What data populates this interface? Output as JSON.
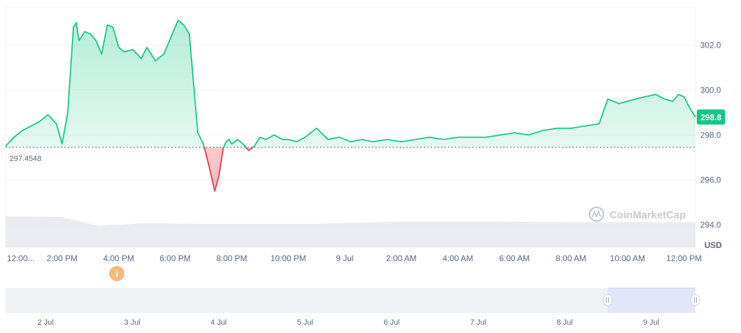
{
  "chart_data": {
    "type": "line",
    "title": "",
    "xlabel": "",
    "ylabel": "USD",
    "ylim": [
      293.0,
      303.7
    ],
    "y_ticks": [
      302.0,
      300.0,
      298.0,
      296.0,
      294.0
    ],
    "y_tick_labels": [
      "302.0",
      "300.0",
      "298.0",
      "296.0",
      "294.0"
    ],
    "x_ticks": [
      {
        "t": 0,
        "label": "12:00..."
      },
      {
        "t": 2,
        "label": "2:00 PM"
      },
      {
        "t": 4,
        "label": "4:00 PM"
      },
      {
        "t": 6,
        "label": "6:00 PM"
      },
      {
        "t": 8,
        "label": "8:00 PM"
      },
      {
        "t": 10,
        "label": "10:00 PM"
      },
      {
        "t": 12,
        "label": "9 Jul"
      },
      {
        "t": 14,
        "label": "2:00 AM"
      },
      {
        "t": 16,
        "label": "4:00 AM"
      },
      {
        "t": 18,
        "label": "6:00 AM"
      },
      {
        "t": 20,
        "label": "8:00 AM"
      },
      {
        "t": 22,
        "label": "10:00 AM"
      },
      {
        "t": 24,
        "label": "12:00 PM"
      }
    ],
    "x_range_hours": [
      0,
      24.4
    ],
    "baseline": {
      "value": 297.4548,
      "label": "297.4548"
    },
    "current_price": {
      "value": 298.8,
      "label": "298.8"
    },
    "colors": {
      "up": "#16c784",
      "down": "#ea3943",
      "badge": "#16c784"
    },
    "series": [
      {
        "x": [
          0,
          0.3,
          0.6,
          0.9,
          1.2,
          1.5,
          1.8,
          2.0,
          2.2,
          2.4,
          2.5,
          2.6,
          2.7,
          2.8,
          3.0,
          3.2,
          3.4,
          3.6,
          3.8,
          4.0,
          4.2,
          4.5,
          4.8,
          5.0,
          5.3,
          5.6,
          5.9,
          6.1,
          6.3,
          6.5,
          6.8,
          7.0,
          7.2,
          7.4,
          7.55,
          7.7,
          7.8,
          7.9,
          8.0,
          8.2,
          8.4,
          8.6,
          8.8,
          9.0,
          9.2,
          9.5,
          9.8,
          10.0,
          10.3,
          10.6,
          11.0,
          11.4,
          11.8,
          12.2,
          12.6,
          13.0,
          13.5,
          14.0,
          14.5,
          15.0,
          15.5,
          16.0,
          16.5,
          17.0,
          17.5,
          18.0,
          18.5,
          19.0,
          19.5,
          20.0,
          20.5,
          21.0,
          21.3,
          21.5,
          21.7,
          22.0,
          22.3,
          22.6,
          23.0,
          23.3,
          23.6,
          23.8,
          24.0,
          24.2,
          24.4
        ],
        "y": [
          297.5,
          297.9,
          298.2,
          298.4,
          298.6,
          298.9,
          298.5,
          297.6,
          299.0,
          302.8,
          303.0,
          302.2,
          302.4,
          302.6,
          302.5,
          302.2,
          301.6,
          302.9,
          302.8,
          301.9,
          301.7,
          301.8,
          301.4,
          301.9,
          301.3,
          301.6,
          302.5,
          303.1,
          302.9,
          302.5,
          298.1,
          297.6,
          296.6,
          295.5,
          296.2,
          297.4,
          297.7,
          297.8,
          297.6,
          297.8,
          297.6,
          297.3,
          297.5,
          297.9,
          297.8,
          298.0,
          297.8,
          297.8,
          297.7,
          297.9,
          298.3,
          297.8,
          297.9,
          297.7,
          297.8,
          297.7,
          297.8,
          297.7,
          297.8,
          297.9,
          297.8,
          297.9,
          297.9,
          297.9,
          298.0,
          298.1,
          298.0,
          298.2,
          298.3,
          298.3,
          298.4,
          298.5,
          299.6,
          299.5,
          299.4,
          299.5,
          299.6,
          299.7,
          299.8,
          299.6,
          299.5,
          299.8,
          299.7,
          299.2,
          298.8
        ]
      }
    ],
    "volume": {
      "x": [
        0,
        2,
        3.3,
        5,
        7,
        9,
        11,
        14,
        17,
        20,
        23,
        24.4
      ],
      "y": [
        0.9,
        0.88,
        0.62,
        0.7,
        0.68,
        0.68,
        0.68,
        0.75,
        0.75,
        0.73,
        0.73,
        0.73
      ]
    },
    "navigator": {
      "ticks": [
        "2 Jul",
        "3 Jul",
        "4 Jul",
        "5 Jul",
        "6 Jul",
        "7 Jul",
        "8 Jul",
        "9 Jul"
      ],
      "selection_start_fraction": 0.875
    },
    "grid": true,
    "legend": "none",
    "watermark": "CoinMarketCap"
  }
}
